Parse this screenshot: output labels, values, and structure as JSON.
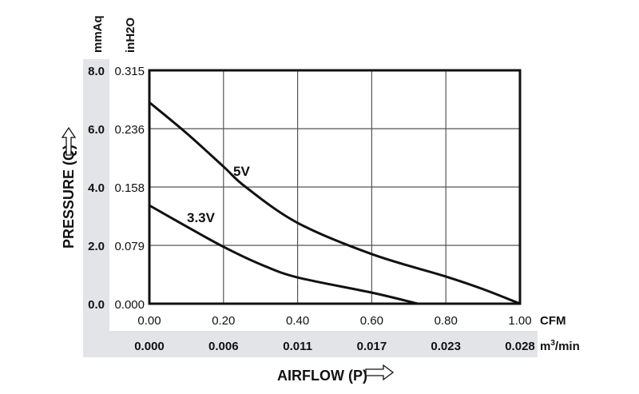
{
  "chart_data": {
    "type": "line",
    "title": "",
    "xlabel": "AIRFLOW (P)",
    "ylabel": "PRESSURE (Q)",
    "x_unit_primary": "CFM",
    "x_unit_secondary": "m³/min",
    "x_unit_secondary_base": "m",
    "x_unit_secondary_sup": "3",
    "x_unit_secondary_rest": "/min",
    "y_unit_primary": "mmAq",
    "y_unit_secondary": "inH2O",
    "y_unit_secondary_base": "inH",
    "y_unit_secondary_sub": "2",
    "y_unit_secondary_rest": "O",
    "xlim": [
      0,
      1.0
    ],
    "ylim": [
      0,
      8.0
    ],
    "grid": true,
    "x_ticks": [
      "0.00",
      "0.20",
      "0.40",
      "0.60",
      "0.80",
      "1.00"
    ],
    "x_ticks_secondary": [
      "0.000",
      "0.006",
      "0.011",
      "0.017",
      "0.023",
      "0.028"
    ],
    "y_ticks": [
      "0.0",
      "2.0",
      "4.0",
      "6.0",
      "8.0"
    ],
    "y_ticks_secondary": [
      "0.000",
      "0.079",
      "0.158",
      "0.236",
      "0.315"
    ],
    "series": [
      {
        "name": "5V",
        "x": [
          0,
          0.1,
          0.2,
          0.26,
          0.4,
          0.6,
          0.8,
          0.9,
          1.0
        ],
        "y": [
          6.9,
          5.85,
          4.7,
          4.0,
          2.77,
          1.7,
          0.93,
          0.5,
          0
        ]
      },
      {
        "name": "3.3V",
        "x": [
          0,
          0.1,
          0.2,
          0.3,
          0.4,
          0.6,
          0.724
        ],
        "y": [
          3.37,
          2.65,
          1.95,
          1.35,
          0.9,
          0.38,
          0
        ]
      }
    ],
    "colors": {
      "line": "#111111",
      "band": "#e3e4e8",
      "grid": "#555555"
    }
  }
}
